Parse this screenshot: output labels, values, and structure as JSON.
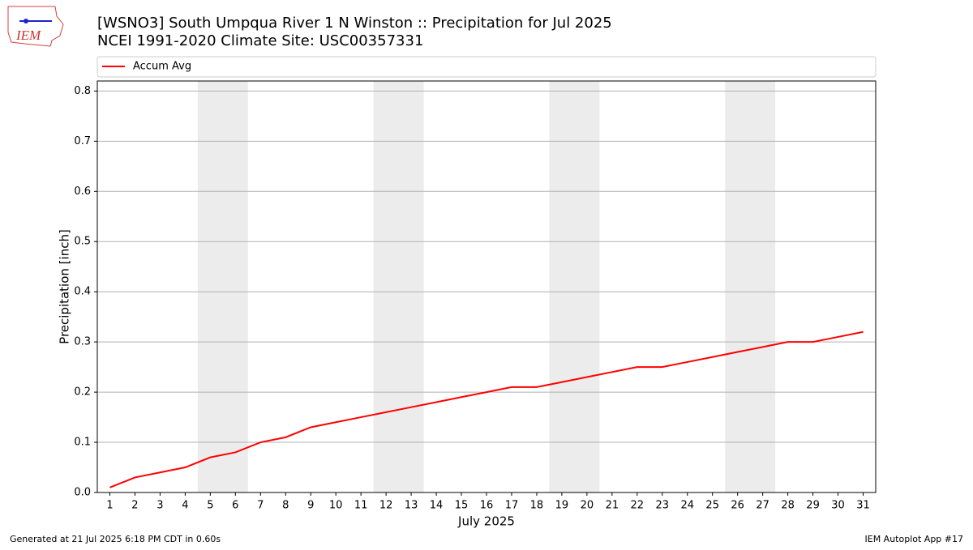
{
  "chart_data": {
    "type": "line",
    "title": "[WSNO3] South Umpqua River 1 N Winston :: Precipitation for Jul 2025",
    "subtitle": "NCEI 1991-2020 Climate Site: USC00357331",
    "xlabel": "July 2025",
    "ylabel": "Precipitation [inch]",
    "logo": "IEM",
    "footer_left": "Generated at 21 Jul 2025 6:18 PM CDT in 0.60s",
    "footer_right": "IEM Autoplot App #17",
    "x": [
      1,
      2,
      3,
      4,
      5,
      6,
      7,
      8,
      9,
      10,
      11,
      12,
      13,
      14,
      15,
      16,
      17,
      18,
      19,
      20,
      21,
      22,
      23,
      24,
      25,
      26,
      27,
      28,
      29,
      30,
      31
    ],
    "series": [
      {
        "name": "Accum Avg",
        "color": "#ff0000",
        "values": [
          0.01,
          0.03,
          0.04,
          0.05,
          0.07,
          0.08,
          0.1,
          0.11,
          0.13,
          0.14,
          0.15,
          0.16,
          0.17,
          0.18,
          0.19,
          0.2,
          0.21,
          0.21,
          0.22,
          0.23,
          0.24,
          0.25,
          0.25,
          0.26,
          0.27,
          0.28,
          0.29,
          0.3,
          0.3,
          0.31,
          0.32
        ]
      }
    ],
    "weekend_spans": [
      [
        4.5,
        6.5
      ],
      [
        11.5,
        13.5
      ],
      [
        18.5,
        20.5
      ],
      [
        25.5,
        27.5
      ]
    ],
    "span_color": "#ececec",
    "xlim": [
      0.5,
      31.5
    ],
    "xticks": [
      1,
      2,
      3,
      4,
      5,
      6,
      7,
      8,
      9,
      10,
      11,
      12,
      13,
      14,
      15,
      16,
      17,
      18,
      19,
      20,
      21,
      22,
      23,
      24,
      25,
      26,
      27,
      28,
      29,
      30,
      31
    ],
    "ylim": [
      0,
      0.82
    ],
    "yticks": [
      {
        "value": 0,
        "label": "0.0"
      },
      0.1,
      0.2,
      0.3,
      0.4,
      0.5,
      0.6,
      0.7,
      0.8
    ],
    "grid": true,
    "legend": "top"
  }
}
